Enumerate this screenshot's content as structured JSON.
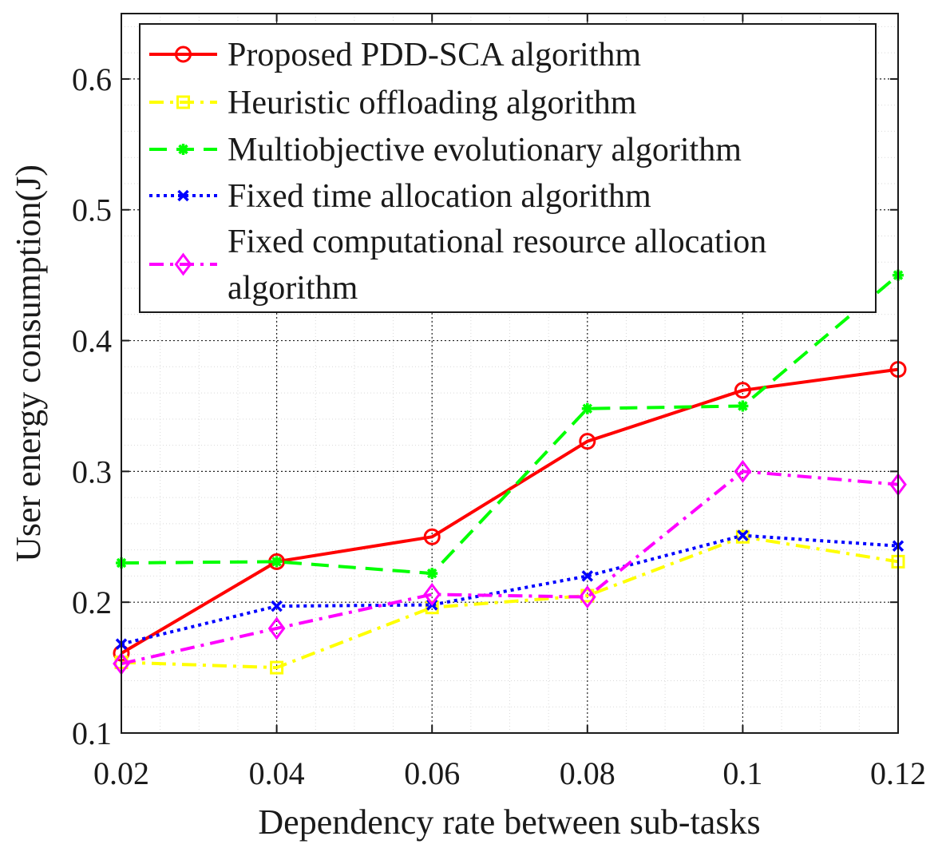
{
  "chart_data": {
    "type": "line",
    "x": [
      0.02,
      0.04,
      0.06,
      0.08,
      0.1,
      0.12
    ],
    "x_tick_labels": [
      "0.02",
      "0.04",
      "0.06",
      "0.08",
      "0.1",
      "0.12"
    ],
    "y_ticks": [
      0.1,
      0.2,
      0.3,
      0.4,
      0.5,
      0.6
    ],
    "y_tick_labels": [
      "0.1",
      "0.2",
      "0.3",
      "0.4",
      "0.5",
      "0.6"
    ],
    "xlim": [
      0.02,
      0.12
    ],
    "ylim": [
      0.1,
      0.65
    ],
    "xlabel": "Dependency rate between sub-tasks",
    "ylabel": "User energy consumption(J)",
    "grid": true,
    "minor_grid": true,
    "legend_position": "top-left",
    "series": [
      {
        "name": "Proposed PDD-SCA algorithm",
        "legend_lines": [
          "Proposed PDD-SCA algorithm"
        ],
        "values": [
          0.161,
          0.231,
          0.25,
          0.323,
          0.362,
          0.378
        ],
        "color": "#ff0000",
        "line_style": "solid",
        "marker": "circle"
      },
      {
        "name": "Heuristic offloading algorithm",
        "legend_lines": [
          "Heuristic offloading algorithm"
        ],
        "values": [
          0.154,
          0.15,
          0.196,
          0.205,
          0.25,
          0.231
        ],
        "color": "#ffff00",
        "line_style": "dashdot",
        "marker": "square"
      },
      {
        "name": "Multiobjective evolutionary algorithm",
        "legend_lines": [
          "Multiobjective evolutionary algorithm"
        ],
        "values": [
          0.23,
          0.231,
          0.222,
          0.348,
          0.35,
          0.45
        ],
        "color": "#00ff00",
        "line_style": "dashed",
        "marker": "asterisk"
      },
      {
        "name": "Fixed time allocation algorithm",
        "legend_lines": [
          "Fixed time allocation algorithm"
        ],
        "values": [
          0.168,
          0.197,
          0.198,
          0.22,
          0.251,
          0.243
        ],
        "color": "#0000ff",
        "line_style": "dotted",
        "marker": "x"
      },
      {
        "name": "Fixed computational resource allocation algorithm",
        "legend_lines": [
          "Fixed computational resource allocation",
          "algorithm"
        ],
        "values": [
          0.153,
          0.18,
          0.206,
          0.204,
          0.3,
          0.29
        ],
        "color": "#ff00ff",
        "line_style": "dashdot",
        "marker": "diamond"
      }
    ]
  }
}
